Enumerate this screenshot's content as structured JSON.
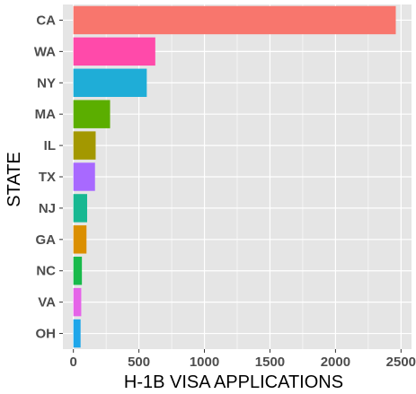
{
  "chart_data": {
    "type": "bar",
    "orientation": "horizontal",
    "title": "",
    "xlabel": "H-1B VISA APPLICATIONS",
    "ylabel": "STATE",
    "categories": [
      "CA",
      "WA",
      "NY",
      "MA",
      "IL",
      "TX",
      "NJ",
      "GA",
      "NC",
      "VA",
      "OH"
    ],
    "values": [
      2460,
      625,
      560,
      280,
      170,
      165,
      105,
      100,
      65,
      60,
      55
    ],
    "colors": [
      "#F8766D",
      "#FF4AAA",
      "#1FADD7",
      "#5BAE00",
      "#A39800",
      "#A869FF",
      "#17B892",
      "#DB8F00",
      "#19BA4B",
      "#E564E8",
      "#1EA6EA"
    ],
    "xlim": [
      -80,
      2580
    ],
    "x_ticks": [
      0,
      500,
      1000,
      1500,
      2000,
      2500
    ],
    "x_tick_labels": [
      "0",
      "500",
      "1000",
      "1500",
      "2000",
      "2500"
    ],
    "grid": true,
    "legend": "none",
    "panel_background": "#E5E5E5",
    "grid_color": "#FFFFFF"
  }
}
